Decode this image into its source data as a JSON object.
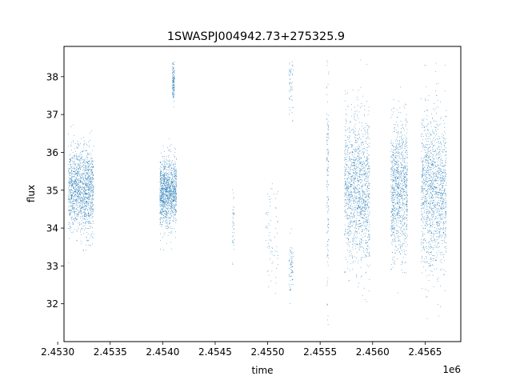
{
  "chart_data": {
    "type": "scatter",
    "title": "1SWASPJ004942.73+275325.9",
    "xlabel": "time",
    "ylabel": "flux",
    "x_offset_label": "1e6",
    "x_offset": 1000000,
    "xlim": [
      2.45306,
      2.45684
    ],
    "ylim": [
      31.0,
      38.8
    ],
    "x_ticks": [
      2.453,
      2.4535,
      2.454,
      2.4545,
      2.455,
      2.4555,
      2.456,
      2.4565
    ],
    "x_tick_labels": [
      "2.4530",
      "2.4535",
      "2.4540",
      "2.4545",
      "2.4550",
      "2.4555",
      "2.4560",
      "2.4565"
    ],
    "y_ticks": [
      32,
      33,
      34,
      35,
      36,
      37,
      38
    ],
    "y_tick_labels": [
      "32",
      "33",
      "34",
      "35",
      "36",
      "37",
      "38"
    ],
    "grid": false,
    "marker_color": "#1f77b4",
    "series": [
      {
        "values": [
          {
            "x_center": 2.45322,
            "x_halfwidth": 0.00012,
            "mean": 35.0,
            "sd": 0.55,
            "density": 1.0
          },
          {
            "x_center": 2.45405,
            "x_halfwidth": 8e-05,
            "mean": 34.95,
            "sd": 0.45,
            "density": 0.85
          },
          {
            "x_center": 2.4541,
            "x_halfwidth": 1e-05,
            "mean": 37.9,
            "sd": 0.25,
            "density": 0.1
          },
          {
            "x_center": 2.45467,
            "x_halfwidth": 1e-05,
            "mean": 34.0,
            "sd": 0.5,
            "density": 0.03
          },
          {
            "x_center": 2.45504,
            "x_halfwidth": 6e-05,
            "mean": 33.8,
            "sd": 0.6,
            "density": 0.05
          },
          {
            "x_center": 2.45522,
            "x_halfwidth": 2e-05,
            "mean": 33.0,
            "sd": 0.35,
            "density": 0.05
          },
          {
            "x_center": 2.45522,
            "x_halfwidth": 2e-05,
            "mean": 37.8,
            "sd": 0.45,
            "density": 0.04
          },
          {
            "x_center": 2.45557,
            "x_halfwidth": 1e-05,
            "mean": 35.0,
            "sd": 1.6,
            "density": 0.1
          },
          {
            "x_center": 2.45585,
            "x_halfwidth": 0.00012,
            "mean": 35.0,
            "sd": 0.95,
            "density": 1.0
          },
          {
            "x_center": 2.45625,
            "x_halfwidth": 8e-05,
            "mean": 35.0,
            "sd": 0.9,
            "density": 0.75
          },
          {
            "x_center": 2.45658,
            "x_halfwidth": 0.00012,
            "mean": 35.0,
            "sd": 1.0,
            "density": 1.0
          }
        ]
      }
    ]
  }
}
